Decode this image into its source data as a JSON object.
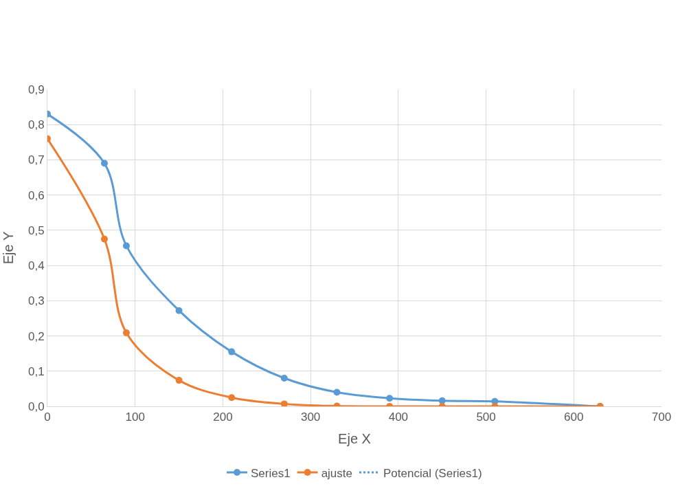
{
  "chart_data": {
    "type": "line",
    "xlabel": "Eje X",
    "ylabel": "Eje Y",
    "x": [
      0,
      65,
      90,
      150,
      210,
      270,
      330,
      390,
      450,
      510,
      630
    ],
    "series": [
      {
        "name": "Series1",
        "color": "#5b9bd5",
        "values": [
          0.83,
          0.69,
          0.456,
          0.272,
          0.155,
          0.08,
          0.04,
          0.023,
          0.016,
          0.014,
          0.0
        ]
      },
      {
        "name": "ajuste",
        "color": "#ed7d31",
        "values": [
          0.76,
          0.475,
          0.209,
          0.074,
          0.025,
          0.007,
          0.001,
          0.0,
          0.0,
          0.0,
          0.0
        ]
      },
      {
        "name": "Potencial (Series1)",
        "color": "#5b9bd5",
        "marker": "none",
        "line_style": "dotted",
        "values": [
          null,
          null,
          null,
          null,
          null,
          null,
          null,
          null,
          null,
          null,
          null
        ]
      }
    ],
    "xlim": [
      0,
      700
    ],
    "xticks": [
      0,
      100,
      200,
      300,
      400,
      500,
      600,
      700
    ],
    "ylim": [
      0,
      0.9
    ],
    "yticks": [
      {
        "value": 0,
        "label": "0,0"
      },
      {
        "value": 0.1,
        "label": "0,1"
      },
      {
        "value": 0.2,
        "label": "0,2"
      },
      {
        "value": 0.3,
        "label": "0,3"
      },
      {
        "value": 0.4,
        "label": "0,4"
      },
      {
        "value": 0.5,
        "label": "0,5"
      },
      {
        "value": 0.6,
        "label": "0,6"
      },
      {
        "value": 0.7,
        "label": "0,7"
      },
      {
        "value": 0.8,
        "label": "0,8"
      },
      {
        "value": 0.9,
        "label": "0,9"
      }
    ],
    "grid": true,
    "legend": "bottom",
    "marker": "circle",
    "line_style": "solid"
  }
}
